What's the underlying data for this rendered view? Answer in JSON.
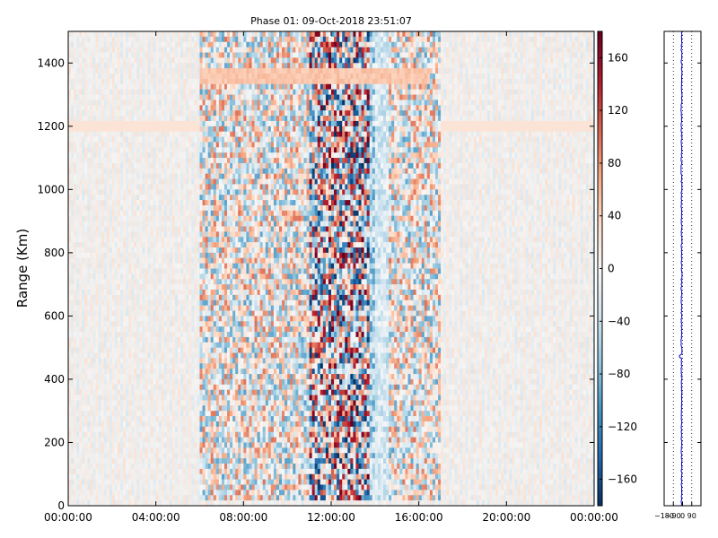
{
  "chart_data": [
    {
      "type": "heatmap",
      "title": "Phase 01: 09-Oct-2018 23:51:07",
      "xlabel": "",
      "ylabel": "Range (Km)",
      "x_ticks": [
        "00:00:00",
        "04:00:00",
        "08:00:00",
        "12:00:00",
        "16:00:00",
        "20:00:00",
        "00:00:00"
      ],
      "x_range_hours": [
        0,
        24
      ],
      "y_ticks": [
        0,
        200,
        400,
        600,
        800,
        1000,
        1200,
        1400
      ],
      "ylim": [
        0,
        1500
      ],
      "colormap": "RdBu_r",
      "colorbar": {
        "range": [
          -180,
          180
        ],
        "ticks": [
          160,
          120,
          80,
          40,
          0,
          -40,
          -80,
          -120,
          -160
        ]
      },
      "activity_band_hours": [
        6,
        17
      ],
      "strong_band_hours": [
        11,
        14
      ]
    },
    {
      "type": "line",
      "title": "",
      "xlim": [
        -180,
        180
      ],
      "x_ticks": [
        "−180",
        "−90",
        "0",
        "90"
      ],
      "ylim": [
        0,
        1500
      ],
      "grid": "dotted vertical",
      "line_color": "#0000cc"
    }
  ]
}
